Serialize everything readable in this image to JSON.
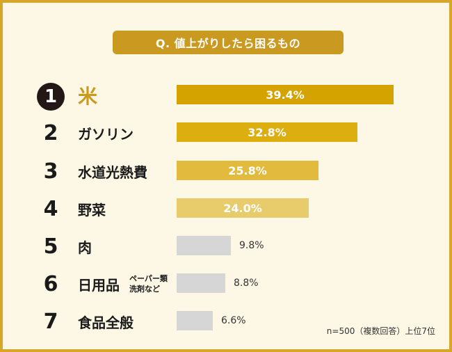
{
  "question": "Q. 値上がりしたら困るもの",
  "footnote": "n=500（複数回答）上位7位",
  "colors": {
    "rank1": "#d4a300",
    "rank2": "#ddae10",
    "rank3": "#e2bb3e",
    "rank4": "#e8cb6a",
    "others": "#d6d6d6"
  },
  "chart_data": {
    "type": "bar",
    "orientation": "horizontal",
    "title": "Q. 値上がりしたら困るもの",
    "unit": "%",
    "xlim": [
      0,
      50
    ],
    "ranks": [
      "1",
      "2",
      "3",
      "4",
      "5",
      "6",
      "7"
    ],
    "categories": [
      "米",
      "ガソリン",
      "水道光熱費",
      "野菜",
      "肉",
      "日用品",
      "食品全般"
    ],
    "notes": [
      "",
      "",
      "",
      "",
      "",
      "ペーパー類 洗剤など",
      ""
    ],
    "note_lines": [
      [],
      [],
      [],
      [],
      [],
      [
        "ペーパー類",
        "洗剤など"
      ],
      []
    ],
    "values": [
      39.4,
      32.8,
      25.8,
      24.0,
      9.8,
      8.8,
      6.6
    ],
    "labels": [
      "39.4%",
      "32.8%",
      "25.8%",
      "24.0%",
      "9.8%",
      "8.8%",
      "6.6%"
    ]
  }
}
